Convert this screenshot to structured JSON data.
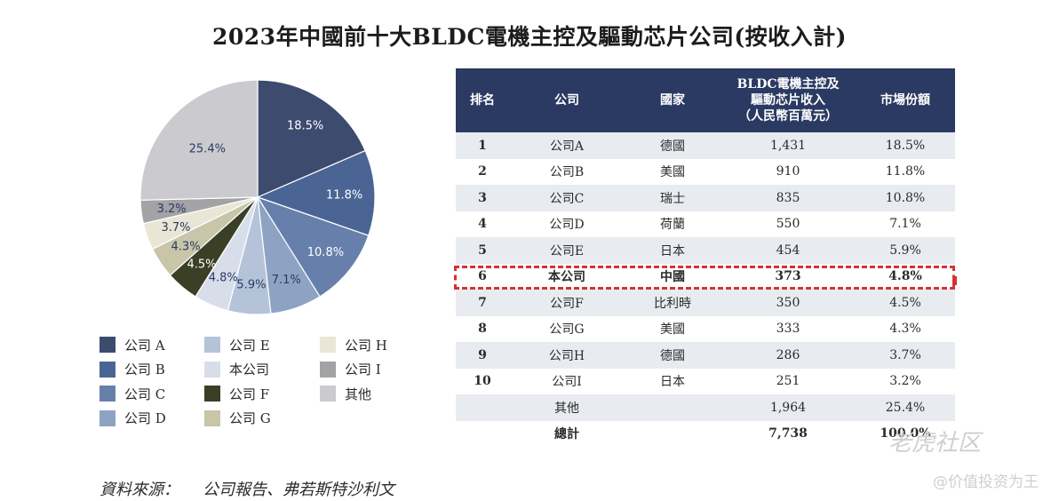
{
  "title": "2023年中國前十大BLDC電機主控及驅動芯片公司(按收入計)",
  "chart_data": {
    "type": "pie",
    "slices": [
      {
        "name": "公司 A",
        "value": 18.5,
        "label": "18.5%",
        "color": "#3c4b6e"
      },
      {
        "name": "公司 B",
        "value": 11.8,
        "label": "11.8%",
        "color": "#4a6594"
      },
      {
        "name": "公司 C",
        "value": 10.8,
        "label": "10.8%",
        "color": "#6680ab"
      },
      {
        "name": "公司 D",
        "value": 7.1,
        "label": "7.1%",
        "color": "#8ea3c3"
      },
      {
        "name": "公司 E",
        "value": 5.9,
        "label": "5.9%",
        "color": "#b4c3d8"
      },
      {
        "name": "本公司",
        "value": 4.8,
        "label": "4.8%",
        "color": "#d7deea"
      },
      {
        "name": "公司 F",
        "value": 4.5,
        "label": "4.5%",
        "color": "#3a3f26"
      },
      {
        "name": "公司 G",
        "value": 4.3,
        "label": "4.3%",
        "color": "#c8c5a8"
      },
      {
        "name": "公司 H",
        "value": 3.7,
        "label": "3.7%",
        "color": "#e9e6d6"
      },
      {
        "name": "公司 I",
        "value": 3.2,
        "label": "3.2%",
        "color": "#a3a3a6"
      },
      {
        "name": "其他",
        "value": 25.4,
        "label": "25.4%",
        "color": "#cbcbcf"
      }
    ]
  },
  "table": {
    "headers": [
      "排名",
      "公司",
      "國家",
      "BLDC電機主控及|驅動芯片收入|（人民幣百萬元）",
      "市場份額"
    ],
    "rows": [
      {
        "rank": "1",
        "company": "公司A",
        "country": "德國",
        "revenue": "1,431",
        "share": "18.5%"
      },
      {
        "rank": "2",
        "company": "公司B",
        "country": "美國",
        "revenue": "910",
        "share": "11.8%"
      },
      {
        "rank": "3",
        "company": "公司C",
        "country": "瑞士",
        "revenue": "835",
        "share": "10.8%"
      },
      {
        "rank": "4",
        "company": "公司D",
        "country": "荷蘭",
        "revenue": "550",
        "share": "7.1%"
      },
      {
        "rank": "5",
        "company": "公司E",
        "country": "日本",
        "revenue": "454",
        "share": "5.9%"
      },
      {
        "rank": "6",
        "company": "本公司",
        "country": "中國",
        "revenue": "373",
        "share": "4.8%"
      },
      {
        "rank": "7",
        "company": "公司F",
        "country": "比利時",
        "revenue": "350",
        "share": "4.5%"
      },
      {
        "rank": "8",
        "company": "公司G",
        "country": "美國",
        "revenue": "333",
        "share": "4.3%"
      },
      {
        "rank": "9",
        "company": "公司H",
        "country": "德國",
        "revenue": "286",
        "share": "3.7%"
      },
      {
        "rank": "10",
        "company": "公司I",
        "country": "日本",
        "revenue": "251",
        "share": "3.2%"
      },
      {
        "rank": "",
        "company": "其他",
        "country": "",
        "revenue": "1,964",
        "share": "25.4%"
      },
      {
        "rank": "",
        "company": "總計",
        "country": "",
        "revenue": "7,738",
        "share": "100.0%"
      }
    ]
  },
  "source": {
    "label": "資料來源：",
    "text": "公司報告、弗若斯特沙利文"
  },
  "watermark": {
    "brand": "老虎社区",
    "tagline": "@价值投资为王"
  }
}
